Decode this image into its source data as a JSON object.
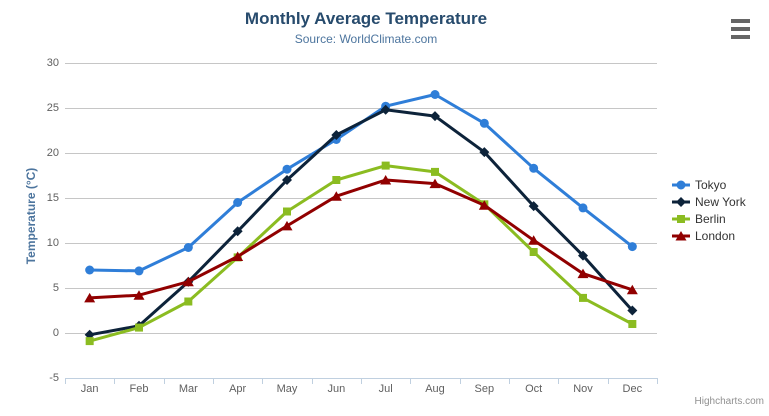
{
  "credits_label": "Highcharts.com",
  "icons": {
    "context_menu": "hamburger-menu-icon"
  },
  "colors": {
    "title": "#274b6d",
    "subtitle": "#4d759e",
    "axis_title": "#4d759e",
    "tick_label": "#606060",
    "gridline": "#c6c6c6",
    "axis_line": "#c0d0e0",
    "legend_text": "#333333",
    "credits": "#909090",
    "menu_icon": "#666666",
    "background": "#ffffff"
  },
  "chart_data": {
    "type": "line",
    "title": "Monthly Average Temperature",
    "subtitle": "Source: WorldClimate.com",
    "categories": [
      "Jan",
      "Feb",
      "Mar",
      "Apr",
      "May",
      "Jun",
      "Jul",
      "Aug",
      "Sep",
      "Oct",
      "Nov",
      "Dec"
    ],
    "series": [
      {
        "name": "Tokyo",
        "color": "#2f7ed8",
        "marker": "circle",
        "values": [
          7.0,
          6.9,
          9.5,
          14.5,
          18.2,
          21.5,
          25.2,
          26.5,
          23.3,
          18.3,
          13.9,
          9.6
        ]
      },
      {
        "name": "New York",
        "color": "#0d233a",
        "marker": "diamond",
        "values": [
          -0.2,
          0.8,
          5.7,
          11.3,
          17.0,
          22.0,
          24.8,
          24.1,
          20.1,
          14.1,
          8.6,
          2.5
        ]
      },
      {
        "name": "Berlin",
        "color": "#8bbc21",
        "marker": "square",
        "values": [
          -0.9,
          0.6,
          3.5,
          8.4,
          13.5,
          17.0,
          18.6,
          17.9,
          14.3,
          9.0,
          3.9,
          1.0
        ]
      },
      {
        "name": "London",
        "color": "#910000",
        "marker": "triangle",
        "values": [
          3.9,
          4.2,
          5.7,
          8.5,
          11.9,
          15.2,
          17.0,
          16.6,
          14.2,
          10.3,
          6.6,
          4.8
        ]
      }
    ],
    "xlabel": "",
    "ylabel": "Temperature (°C)",
    "ylim": [
      -5,
      30
    ],
    "yticks": [
      -5,
      0,
      5,
      10,
      15,
      20,
      25,
      30
    ],
    "grid": true,
    "legend_position": "right"
  }
}
